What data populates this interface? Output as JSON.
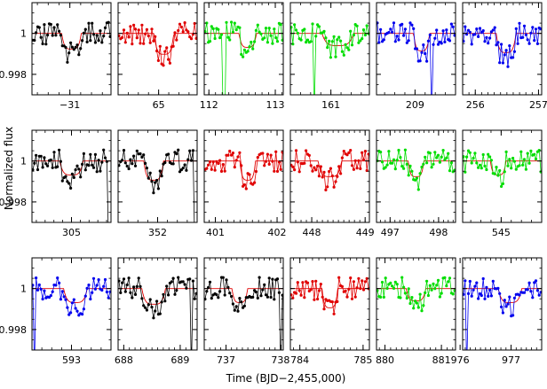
{
  "chart_data": {
    "type": "scatter",
    "layout": "grid of 18 light-curve panels (3 rows x 6 columns)",
    "xlabel": "Time (BJD−2,455,000)",
    "ylabel": "Normalized flux",
    "ylim": [
      0.997,
      1.0015
    ],
    "yticks": [
      1,
      0.998
    ],
    "grid": false,
    "line_color": "#000000",
    "model_line_color": "#e00000",
    "panels": [
      {
        "id": "p1",
        "color": "#000000",
        "xlim": [
          -31.35,
          -30.62
        ],
        "xticks": [
          -31
        ],
        "tick_labels": [
          "−31"
        ],
        "dip": {
          "t": 0.5,
          "w": 0.25,
          "d": 0.0009
        },
        "drops": [],
        "seed": 11
      },
      {
        "id": "p2",
        "color": "#e00000",
        "xlim": [
          64.6,
          65.38
        ],
        "xticks": [
          65
        ],
        "tick_labels": [
          "65"
        ],
        "dip": {
          "t": 0.58,
          "w": 0.25,
          "d": 0.0012
        },
        "drops": [],
        "seed": 12
      },
      {
        "id": "p3",
        "color": "#00dd00",
        "xlim": [
          111.93,
          113.12
        ],
        "xticks": [
          112,
          113
        ],
        "tick_labels": [
          "112",
          "113"
        ],
        "dip": {
          "t": 0.55,
          "w": 0.22,
          "d": 0.0008
        },
        "drops": [
          0.25
        ],
        "seed": 13
      },
      {
        "id": "p4",
        "color": "#00dd00",
        "xlim": [
          160.6,
          161.38
        ],
        "xticks": [
          161
        ],
        "tick_labels": [
          "161"
        ],
        "dip": {
          "t": 0.6,
          "w": 0.4,
          "d": 0.0007
        },
        "drops": [
          0.31
        ],
        "seed": 14
      },
      {
        "id": "p5",
        "color": "#0000ee",
        "xlim": [
          208.62,
          209.4
        ],
        "xticks": [
          209
        ],
        "tick_labels": [
          "209"
        ],
        "dip": {
          "t": 0.57,
          "w": 0.2,
          "d": 0.001
        },
        "drops": [
          0.7
        ],
        "seed": 15
      },
      {
        "id": "p6",
        "color": "#0000ee",
        "xlim": [
          255.8,
          257.05
        ],
        "xticks": [
          256,
          257
        ],
        "tick_labels": [
          "256",
          "257"
        ],
        "dip": {
          "t": 0.55,
          "w": 0.25,
          "d": 0.0011
        },
        "drops": [],
        "seed": 16
      },
      {
        "id": "p7",
        "color": "#000000",
        "xlim": [
          304.55,
          305.45
        ],
        "xticks": [
          305
        ],
        "tick_labels": [
          "305"
        ],
        "dip": {
          "t": 0.5,
          "w": 0.3,
          "d": 0.0008
        },
        "drops": [
          0.98
        ],
        "seed": 21
      },
      {
        "id": "p8",
        "color": "#000000",
        "xlim": [
          351.6,
          352.4
        ],
        "xticks": [
          352
        ],
        "tick_labels": [
          "352"
        ],
        "dip": {
          "t": 0.45,
          "w": 0.25,
          "d": 0.0011
        },
        "drops": [
          0.98
        ],
        "seed": 22
      },
      {
        "id": "p9",
        "color": "#e00000",
        "xlim": [
          400.82,
          402.1
        ],
        "xticks": [
          401,
          402
        ],
        "tick_labels": [
          "401",
          "402"
        ],
        "dip": {
          "t": 0.55,
          "w": 0.2,
          "d": 0.0011
        },
        "drops": [],
        "seed": 23
      },
      {
        "id": "p10",
        "color": "#e00000",
        "xlim": [
          447.6,
          449.08
        ],
        "xticks": [
          448,
          449
        ],
        "tick_labels": [
          "448",
          "449"
        ],
        "dip": {
          "t": 0.5,
          "w": 0.3,
          "d": 0.0009
        },
        "drops": [],
        "seed": 24
      },
      {
        "id": "p11",
        "color": "#00dd00",
        "xlim": [
          496.72,
          498.35
        ],
        "xticks": [
          497,
          498
        ],
        "tick_labels": [
          "497",
          "498"
        ],
        "dip": {
          "t": 0.5,
          "w": 0.2,
          "d": 0.0009
        },
        "drops": [],
        "seed": 25
      },
      {
        "id": "p12",
        "color": "#00dd00",
        "xlim": [
          544.62,
          545.4
        ],
        "xticks": [
          545
        ],
        "tick_labels": [
          "545"
        ],
        "dip": {
          "t": 0.45,
          "w": 0.2,
          "d": 0.0008
        },
        "drops": [],
        "seed": 26
      },
      {
        "id": "p13",
        "color": "#0000ee",
        "xlim": [
          592.6,
          593.4
        ],
        "xticks": [
          593
        ],
        "tick_labels": [
          "593"
        ],
        "dip": {
          "t": 0.55,
          "w": 0.3,
          "d": 0.0008
        },
        "drops": [
          0.04
        ],
        "seed": 31
      },
      {
        "id": "p14",
        "color": "#000000",
        "xlim": [
          687.9,
          689.3
        ],
        "xticks": [
          688,
          689
        ],
        "tick_labels": [
          "688",
          "689"
        ],
        "dip": {
          "t": 0.45,
          "w": 0.3,
          "d": 0.0009
        },
        "drops": [
          0.93
        ],
        "seed": 32
      },
      {
        "id": "p15",
        "color": "#000000",
        "xlim": [
          736.6,
          738.05
        ],
        "xticks": [
          737,
          738
        ],
        "tick_labels": [
          "737",
          "738"
        ],
        "dip": {
          "t": 0.45,
          "w": 0.2,
          "d": 0.0008
        },
        "drops": [
          0.96
        ],
        "seed": 33
      },
      {
        "id": "p16",
        "color": "#e00000",
        "xlim": [
          783.85,
          785.1
        ],
        "xticks": [
          784,
          785
        ],
        "tick_labels": [
          "784",
          "785"
        ],
        "dip": {
          "t": 0.5,
          "w": 0.2,
          "d": 0.0011
        },
        "drops": [],
        "seed": 34
      },
      {
        "id": "p17",
        "color": "#00dd00",
        "xlim": [
          879.85,
          881.25
        ],
        "xticks": [
          880,
          881
        ],
        "tick_labels": [
          "880",
          "881"
        ],
        "dip": {
          "t": 0.5,
          "w": 0.25,
          "d": 0.0007
        },
        "drops": [],
        "seed": 35
      },
      {
        "id": "p18",
        "color": "#0000ee",
        "xlim": [
          976.05,
          977.6
        ],
        "xticks": [
          976,
          977
        ],
        "tick_labels": [
          "976",
          "977"
        ],
        "dip": {
          "t": 0.6,
          "w": 0.3,
          "d": 0.0008
        },
        "drops": [
          0.05
        ],
        "seed": 36
      }
    ]
  }
}
